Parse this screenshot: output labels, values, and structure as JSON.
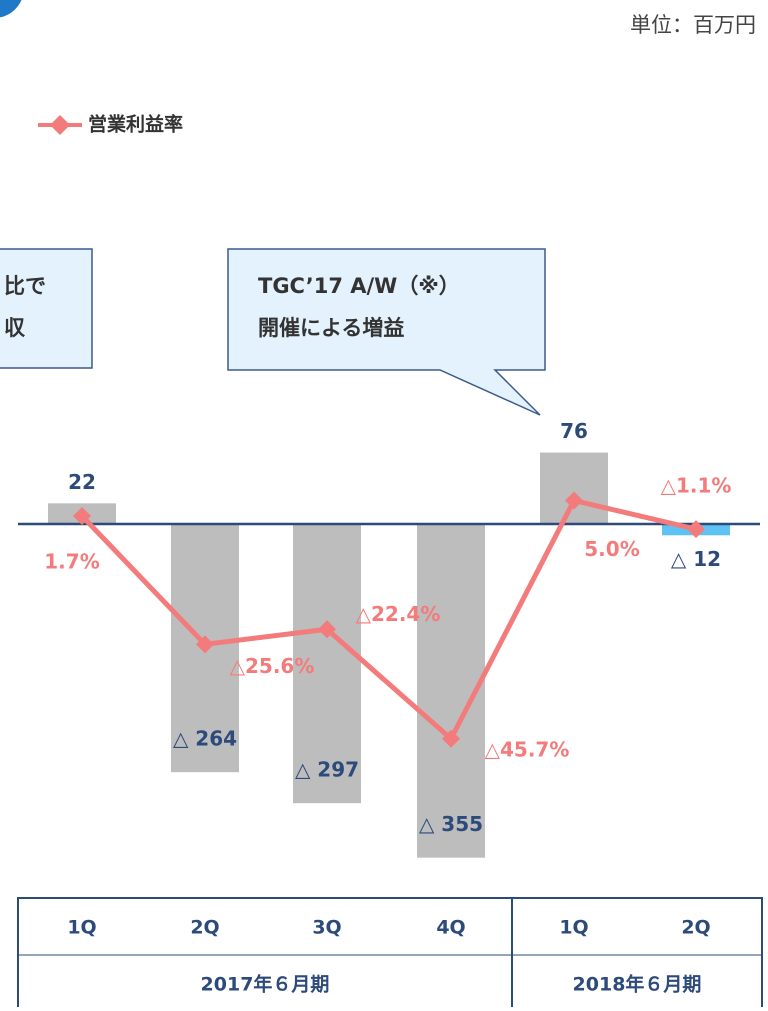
{
  "unit": "単位：百万円",
  "chart_data": {
    "type": "bar-line",
    "legend": "営業利益率",
    "groups": [
      {
        "label": "2017年６月期",
        "categories": [
          "1Q",
          "2Q",
          "3Q",
          "4Q"
        ]
      },
      {
        "label": "2018年６月期",
        "categories": [
          "1Q",
          "2Q"
        ]
      }
    ],
    "bars": {
      "values": [
        22,
        -264,
        -297,
        -355,
        76,
        -12
      ],
      "value_labels": [
        "22",
        "△ 264",
        "△ 297",
        "△ 355",
        "76",
        "△ 12"
      ],
      "colors": [
        "#bdbdbd",
        "#bdbdbd",
        "#bdbdbd",
        "#bdbdbd",
        "#bdbdbd",
        "#5ec3f2"
      ]
    },
    "line": {
      "name": "営業利益率",
      "color": "#f47b7b",
      "axis": "y2",
      "values": [
        1.7,
        -25.6,
        -22.4,
        -45.7,
        5.0,
        -1.1
      ],
      "value_labels": [
        "1.7%",
        "△25.6%",
        "△22.4%",
        "△45.7%",
        "5.0%",
        "△1.1%"
      ]
    },
    "ylim": [
      -400,
      100
    ],
    "y2lim": [
      -80,
      20
    ],
    "annotations": [
      {
        "lines": [
          "比で",
          "収"
        ]
      },
      {
        "lines": [
          "TGC’17 A/W（※）",
          "開催による増益"
        ]
      }
    ]
  }
}
